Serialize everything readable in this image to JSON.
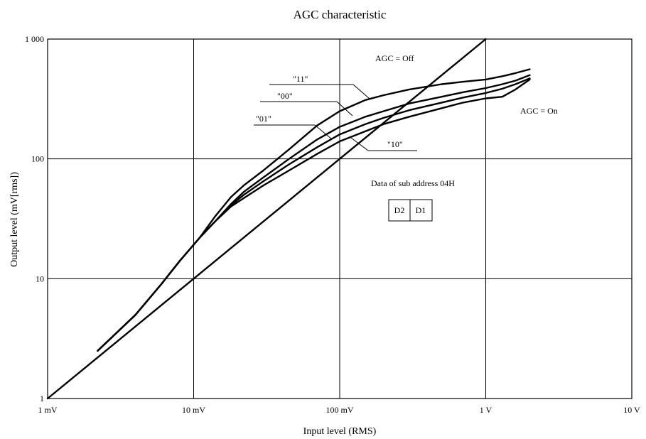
{
  "chart_data": {
    "type": "line",
    "title": "AGC characteristic",
    "xlabel": "Input level  (RMS)",
    "ylabel": "Output level  (mV[rms])",
    "x_scale": "log",
    "y_scale": "log",
    "x_unit": "mV",
    "y_unit": "mV",
    "xlim": [
      1,
      10000
    ],
    "ylim": [
      1,
      1000
    ],
    "grid": true,
    "x_ticks": [
      {
        "value": 1,
        "label": "1 mV"
      },
      {
        "value": 10,
        "label": "10 mV"
      },
      {
        "value": 100,
        "label": "100 mV"
      },
      {
        "value": 1000,
        "label": "1 V"
      },
      {
        "value": 10000,
        "label": "10 V"
      }
    ],
    "y_ticks": [
      {
        "value": 1,
        "label": "1"
      },
      {
        "value": 10,
        "label": "10"
      },
      {
        "value": 100,
        "label": "100"
      },
      {
        "value": 1000,
        "label": "1 000"
      }
    ],
    "series": [
      {
        "name": "AGC = Off",
        "x": [
          1,
          1000
        ],
        "y": [
          1,
          1000
        ]
      },
      {
        "name": "\"11\"",
        "x": [
          2.2,
          4,
          6,
          8,
          11,
          14,
          18,
          22,
          30,
          45,
          70,
          100,
          150,
          200,
          300,
          500,
          700,
          1000,
          1300,
          1600,
          2000
        ],
        "y": [
          2.5,
          5,
          9,
          14,
          22,
          33,
          48,
          60,
          80,
          120,
          190,
          250,
          310,
          340,
          380,
          420,
          440,
          460,
          490,
          520,
          560
        ]
      },
      {
        "name": "\"00\"",
        "x": [
          2.2,
          4,
          6,
          8,
          11,
          14,
          18,
          22,
          30,
          45,
          70,
          100,
          150,
          200,
          300,
          500,
          700,
          1000,
          1300,
          1600,
          2000
        ],
        "y": [
          2.5,
          5,
          9,
          14,
          22,
          30,
          42,
          53,
          70,
          100,
          145,
          185,
          225,
          250,
          290,
          330,
          360,
          390,
          420,
          450,
          500
        ]
      },
      {
        "name": "\"01\"",
        "x": [
          2.2,
          4,
          6,
          8,
          11,
          14,
          18,
          22,
          30,
          45,
          70,
          100,
          150,
          200,
          300,
          500,
          700,
          1000,
          1300,
          1600,
          2000
        ],
        "y": [
          2.5,
          5,
          9,
          14,
          22,
          30,
          41,
          50,
          65,
          90,
          125,
          160,
          195,
          220,
          255,
          295,
          325,
          355,
          385,
          420,
          470
        ]
      },
      {
        "name": "\"10\"",
        "x": [
          2.2,
          4,
          6,
          8,
          11,
          14,
          18,
          22,
          30,
          45,
          70,
          100,
          150,
          200,
          300,
          500,
          700,
          1000,
          1300,
          1600,
          2000
        ],
        "y": [
          2.5,
          5,
          9,
          14,
          22,
          30,
          40,
          47,
          60,
          80,
          110,
          140,
          170,
          195,
          225,
          265,
          295,
          320,
          330,
          380,
          460
        ]
      }
    ],
    "annotations": {
      "agc_off": "AGC = Off",
      "agc_on": "AGC = On",
      "sub_address": "Data of sub address 04H",
      "bit_d2": "D2",
      "bit_d1": "D1"
    }
  }
}
